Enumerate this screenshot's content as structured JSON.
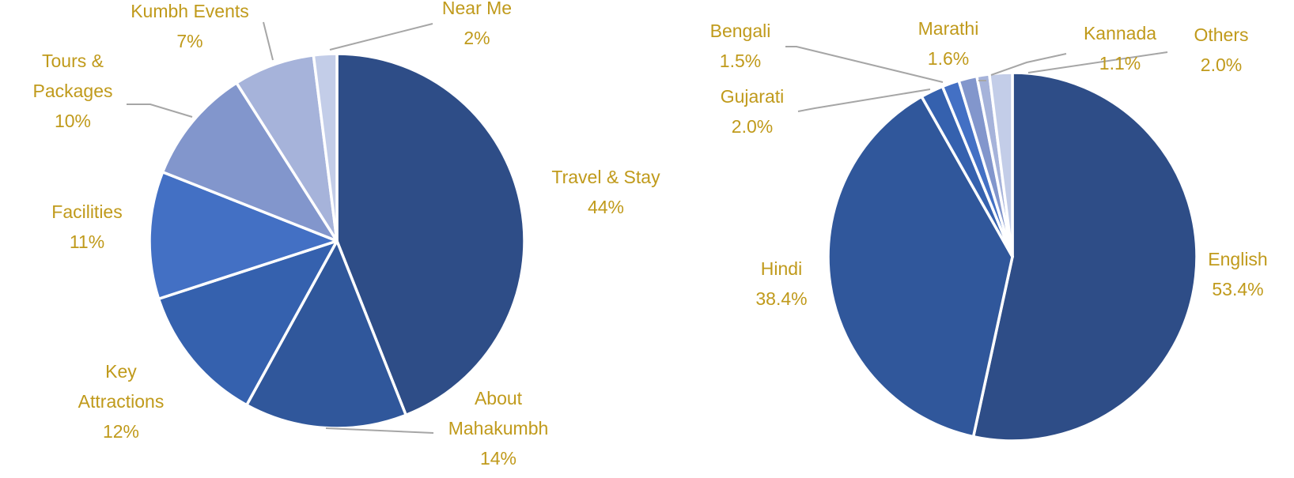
{
  "chart_data": [
    {
      "type": "pie",
      "title": "",
      "slices": [
        {
          "label_lines": [
            "Travel & Stay"
          ],
          "value_text": "44%",
          "value": 44,
          "color": "#2e4d87"
        },
        {
          "label_lines": [
            "About",
            "Mahakumbh"
          ],
          "value_text": "14%",
          "value": 14,
          "color": "#30579b"
        },
        {
          "label_lines": [
            "Key",
            "Attractions"
          ],
          "value_text": "12%",
          "value": 12,
          "color": "#3561ae"
        },
        {
          "label_lines": [
            "Facilities"
          ],
          "value_text": "11%",
          "value": 11,
          "color": "#4370c4"
        },
        {
          "label_lines": [
            "Tours &",
            "Packages"
          ],
          "value_text": "10%",
          "value": 10,
          "color": "#8296cc"
        },
        {
          "label_lines": [
            "Kumbh Events"
          ],
          "value_text": "7%",
          "value": 7,
          "color": "#a6b3da"
        },
        {
          "label_lines": [
            "Near Me"
          ],
          "value_text": "2%",
          "value": 2,
          "color": "#c3cde8"
        }
      ]
    },
    {
      "type": "pie",
      "title": "",
      "slices": [
        {
          "label_lines": [
            "English"
          ],
          "value_text": "53.4%",
          "value": 53.4,
          "color": "#2e4d87"
        },
        {
          "label_lines": [
            "Hindi"
          ],
          "value_text": "38.4%",
          "value": 38.4,
          "color": "#30579b"
        },
        {
          "label_lines": [
            "Gujarati"
          ],
          "value_text": "2.0%",
          "value": 2.0,
          "color": "#3561ae"
        },
        {
          "label_lines": [
            "Bengali"
          ],
          "value_text": "1.5%",
          "value": 1.5,
          "color": "#4370c4"
        },
        {
          "label_lines": [
            "Marathi"
          ],
          "value_text": "1.6%",
          "value": 1.6,
          "color": "#8296cc"
        },
        {
          "label_lines": [
            "Kannada"
          ],
          "value_text": "1.1%",
          "value": 1.1,
          "color": "#a6b3da"
        },
        {
          "label_lines": [
            "Others"
          ],
          "value_text": "2.0%",
          "value": 2.0,
          "color": "#c3cde8"
        }
      ]
    }
  ]
}
